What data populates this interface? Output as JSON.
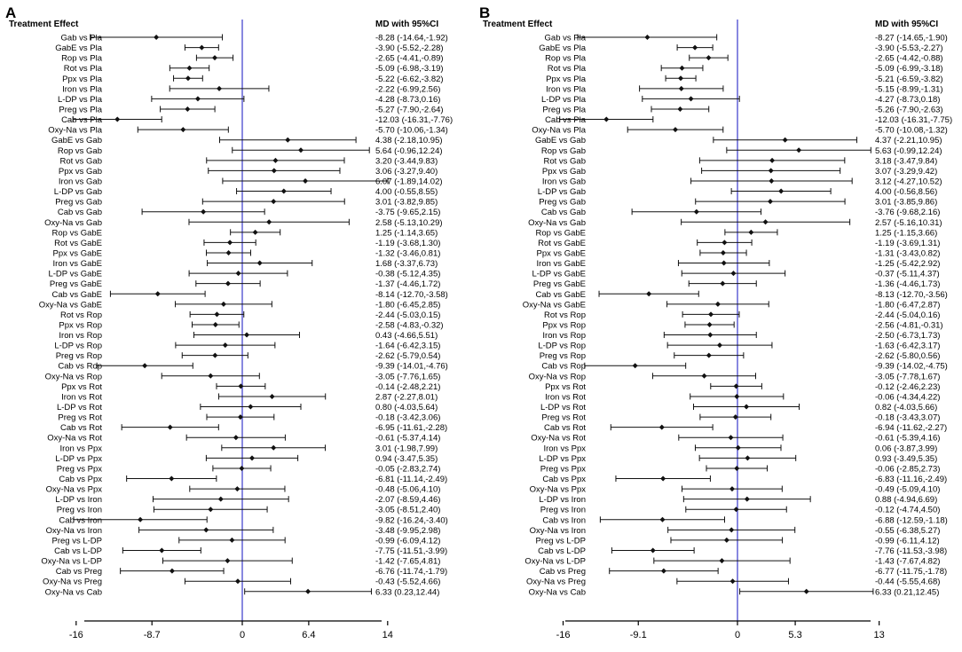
{
  "chart_data": [
    {
      "type": "forest",
      "panel_label": "A",
      "column_headers": {
        "left": "Treatment Effect",
        "right": "MD with 95%CI"
      },
      "x_ticks": [
        "-16",
        "-8.7",
        "0",
        "6.4",
        "14"
      ],
      "x_tick_values": [
        -16,
        -8.7,
        0,
        6.4,
        14
      ],
      "reference_line": 0,
      "rows": [
        {
          "label": "Gab vs Pla",
          "md": -8.28,
          "lo": -14.64,
          "hi": -1.92,
          "text": "-8.28 (-14.64,-1.92)"
        },
        {
          "label": "GabE vs Pla",
          "md": -3.9,
          "lo": -5.52,
          "hi": -2.28,
          "text": "-3.90 (-5.52,-2.28)"
        },
        {
          "label": "Rop vs Pla",
          "md": -2.65,
          "lo": -4.41,
          "hi": -0.89,
          "text": "-2.65 (-4.41,-0.89)"
        },
        {
          "label": "Rot vs Pla",
          "md": -5.09,
          "lo": -6.98,
          "hi": -3.19,
          "text": "-5.09 (-6.98,-3.19)"
        },
        {
          "label": "Ppx vs Pla",
          "md": -5.22,
          "lo": -6.62,
          "hi": -3.82,
          "text": "-5.22 (-6.62,-3.82)"
        },
        {
          "label": "Iron vs Pla",
          "md": -2.22,
          "lo": -6.99,
          "hi": 2.56,
          "text": "-2.22 (-6.99,2.56)"
        },
        {
          "label": "L-DP vs Pla",
          "md": -4.28,
          "lo": -8.73,
          "hi": 0.16,
          "text": "-4.28 (-8.73,0.16)"
        },
        {
          "label": "Preg vs Pla",
          "md": -5.27,
          "lo": -7.9,
          "hi": -2.64,
          "text": "-5.27 (-7.90,-2.64)"
        },
        {
          "label": "Cab vs Pla",
          "md": -12.03,
          "lo": -16.31,
          "hi": -7.76,
          "text": "-12.03 (-16.31,-7.76)"
        },
        {
          "label": "Oxy-Na vs Pla",
          "md": -5.7,
          "lo": -10.06,
          "hi": -1.34,
          "text": "-5.70 (-10.06,-1.34)"
        },
        {
          "label": "GabE vs Gab",
          "md": 4.38,
          "lo": -2.18,
          "hi": 10.95,
          "text": "4.38 (-2.18,10.95)"
        },
        {
          "label": "Rop vs Gab",
          "md": 5.64,
          "lo": -0.96,
          "hi": 12.24,
          "text": "5.64 (-0.96,12.24)"
        },
        {
          "label": "Rot vs Gab",
          "md": 3.2,
          "lo": -3.44,
          "hi": 9.83,
          "text": "3.20 (-3.44,9.83)"
        },
        {
          "label": "Ppx vs Gab",
          "md": 3.06,
          "lo": -3.27,
          "hi": 9.4,
          "text": "3.06 (-3.27,9.40)"
        },
        {
          "label": "Iron vs Gab",
          "md": 6.07,
          "lo": -1.89,
          "hi": 14.02,
          "text": "6.07 (-1.89,14.02)"
        },
        {
          "label": "L-DP vs Gab",
          "md": 4.0,
          "lo": -0.55,
          "hi": 8.55,
          "text": "4.00 (-0.55,8.55)"
        },
        {
          "label": "Preg vs Gab",
          "md": 3.01,
          "lo": -3.82,
          "hi": 9.85,
          "text": "3.01 (-3.82,9.85)"
        },
        {
          "label": "Cab vs Gab",
          "md": -3.75,
          "lo": -9.65,
          "hi": 2.15,
          "text": "-3.75 (-9.65,2.15)"
        },
        {
          "label": "Oxy-Na vs Gab",
          "md": 2.58,
          "lo": -5.13,
          "hi": 10.29,
          "text": "2.58 (-5.13,10.29)"
        },
        {
          "label": "Rop vs GabE",
          "md": 1.25,
          "lo": -1.14,
          "hi": 3.65,
          "text": "1.25 (-1.14,3.65)"
        },
        {
          "label": "Rot vs GabE",
          "md": -1.19,
          "lo": -3.68,
          "hi": 1.3,
          "text": "-1.19 (-3.68,1.30)"
        },
        {
          "label": "Ppx vs GabE",
          "md": -1.32,
          "lo": -3.46,
          "hi": 0.81,
          "text": "-1.32 (-3.46,0.81)"
        },
        {
          "label": "Iron vs GabE",
          "md": 1.68,
          "lo": -3.37,
          "hi": 6.73,
          "text": "1.68 (-3.37,6.73)"
        },
        {
          "label": "L-DP vs GabE",
          "md": -0.38,
          "lo": -5.12,
          "hi": 4.35,
          "text": "-0.38 (-5.12,4.35)"
        },
        {
          "label": "Preg vs GabE",
          "md": -1.37,
          "lo": -4.46,
          "hi": 1.72,
          "text": "-1.37 (-4.46,1.72)"
        },
        {
          "label": "Cab vs GabE",
          "md": -8.14,
          "lo": -12.7,
          "hi": -3.58,
          "text": "-8.14 (-12.70,-3.58)"
        },
        {
          "label": "Oxy-Na vs GabE",
          "md": -1.8,
          "lo": -6.45,
          "hi": 2.85,
          "text": "-1.80 (-6.45,2.85)"
        },
        {
          "label": "Rot vs Rop",
          "md": -2.44,
          "lo": -5.03,
          "hi": 0.15,
          "text": "-2.44 (-5.03,0.15)"
        },
        {
          "label": "Ppx vs Rop",
          "md": -2.58,
          "lo": -4.83,
          "hi": -0.32,
          "text": "-2.58 (-4.83,-0.32)"
        },
        {
          "label": "Iron vs Rop",
          "md": 0.43,
          "lo": -4.66,
          "hi": 5.51,
          "text": "0.43 (-4.66,5.51)"
        },
        {
          "label": "L-DP vs Rop",
          "md": -1.64,
          "lo": -6.42,
          "hi": 3.15,
          "text": "-1.64 (-6.42,3.15)"
        },
        {
          "label": "Preg vs Rop",
          "md": -2.62,
          "lo": -5.79,
          "hi": 0.54,
          "text": "-2.62 (-5.79,0.54)"
        },
        {
          "label": "Cab vs Rop",
          "md": -9.39,
          "lo": -14.01,
          "hi": -4.76,
          "text": "-9.39 (-14.01,-4.76)"
        },
        {
          "label": "Oxy-Na vs Rop",
          "md": -3.05,
          "lo": -7.76,
          "hi": 1.65,
          "text": "-3.05 (-7.76,1.65)"
        },
        {
          "label": "Ppx vs Rot",
          "md": -0.14,
          "lo": -2.48,
          "hi": 2.21,
          "text": "-0.14 (-2.48,2.21)"
        },
        {
          "label": "Iron vs Rot",
          "md": 2.87,
          "lo": -2.27,
          "hi": 8.01,
          "text": "2.87 (-2.27,8.01)"
        },
        {
          "label": "L-DP vs Rot",
          "md": 0.8,
          "lo": -4.03,
          "hi": 5.64,
          "text": "0.80 (-4.03,5.64)"
        },
        {
          "label": "Preg vs Rot",
          "md": -0.18,
          "lo": -3.42,
          "hi": 3.06,
          "text": "-0.18 (-3.42,3.06)"
        },
        {
          "label": "Cab vs Rot",
          "md": -6.95,
          "lo": -11.61,
          "hi": -2.28,
          "text": "-6.95 (-11.61,-2.28)"
        },
        {
          "label": "Oxy-Na vs Rot",
          "md": -0.61,
          "lo": -5.37,
          "hi": 4.14,
          "text": "-0.61 (-5.37,4.14)"
        },
        {
          "label": "Iron vs Ppx",
          "md": 3.01,
          "lo": -1.98,
          "hi": 7.99,
          "text": "3.01 (-1.98,7.99)"
        },
        {
          "label": "L-DP vs Ppx",
          "md": 0.94,
          "lo": -3.47,
          "hi": 5.35,
          "text": "0.94 (-3.47,5.35)"
        },
        {
          "label": "Preg vs Ppx",
          "md": -0.05,
          "lo": -2.83,
          "hi": 2.74,
          "text": "-0.05 (-2.83,2.74)"
        },
        {
          "label": "Cab vs Ppx",
          "md": -6.81,
          "lo": -11.14,
          "hi": -2.49,
          "text": "-6.81 (-11.14,-2.49)"
        },
        {
          "label": "Oxy-Na vs Ppx",
          "md": -0.48,
          "lo": -5.06,
          "hi": 4.1,
          "text": "-0.48 (-5.06,4.10)"
        },
        {
          "label": "L-DP vs Iron",
          "md": -2.07,
          "lo": -8.59,
          "hi": 4.46,
          "text": "-2.07 (-8.59,4.46)"
        },
        {
          "label": "Preg vs Iron",
          "md": -3.05,
          "lo": -8.51,
          "hi": 2.4,
          "text": "-3.05 (-8.51,2.40)"
        },
        {
          "label": "Cab vs Iron",
          "md": -9.82,
          "lo": -16.24,
          "hi": -3.4,
          "text": "-9.82 (-16.24,-3.40)"
        },
        {
          "label": "Oxy-Na vs Iron",
          "md": -3.48,
          "lo": -9.95,
          "hi": 2.98,
          "text": "-3.48 (-9.95,2.98)"
        },
        {
          "label": "Preg vs L-DP",
          "md": -0.99,
          "lo": -6.09,
          "hi": 4.12,
          "text": "-0.99 (-6.09,4.12)"
        },
        {
          "label": "Cab vs L-DP",
          "md": -7.75,
          "lo": -11.51,
          "hi": -3.99,
          "text": "-7.75 (-11.51,-3.99)"
        },
        {
          "label": "Oxy-Na vs L-DP",
          "md": -1.42,
          "lo": -7.65,
          "hi": 4.81,
          "text": "-1.42 (-7.65,4.81)"
        },
        {
          "label": "Cab vs Preg",
          "md": -6.76,
          "lo": -11.74,
          "hi": -1.79,
          "text": "-6.76 (-11.74,-1.79)"
        },
        {
          "label": "Oxy-Na vs Preg",
          "md": -0.43,
          "lo": -5.52,
          "hi": 4.66,
          "text": "-0.43 (-5.52,4.66)"
        },
        {
          "label": "Oxy-Na vs Cab",
          "md": 6.33,
          "lo": 0.23,
          "hi": 12.44,
          "text": "6.33 (0.23,12.44)"
        }
      ]
    },
    {
      "type": "forest",
      "panel_label": "B",
      "column_headers": {
        "left": "Treatment Effect",
        "right": "MD with 95%CI"
      },
      "x_ticks": [
        "-16",
        "-9.1",
        "0",
        "5.3",
        "13"
      ],
      "x_tick_values": [
        -16,
        -9.1,
        0,
        5.3,
        13
      ],
      "reference_line": 0,
      "rows": [
        {
          "label": "Gab vs Pla",
          "md": -8.27,
          "lo": -14.65,
          "hi": -1.9,
          "text": "-8.27 (-14.65,-1.90)"
        },
        {
          "label": "GabE vs Pla",
          "md": -3.9,
          "lo": -5.53,
          "hi": -2.27,
          "text": "-3.90 (-5.53,-2.27)"
        },
        {
          "label": "Rop vs Pla",
          "md": -2.65,
          "lo": -4.42,
          "hi": -0.88,
          "text": "-2.65 (-4.42,-0.88)"
        },
        {
          "label": "Rot vs Pla",
          "md": -5.09,
          "lo": -6.99,
          "hi": -3.18,
          "text": "-5.09 (-6.99,-3.18)"
        },
        {
          "label": "Ppx vs Pla",
          "md": -5.21,
          "lo": -6.59,
          "hi": -3.82,
          "text": "-5.21 (-6.59,-3.82)"
        },
        {
          "label": "Iron vs Pla",
          "md": -5.15,
          "lo": -8.99,
          "hi": -1.31,
          "text": "-5.15 (-8.99,-1.31)"
        },
        {
          "label": "L-DP vs Pla",
          "md": -4.27,
          "lo": -8.73,
          "hi": 0.18,
          "text": "-4.27 (-8.73,0.18)"
        },
        {
          "label": "Preg vs Pla",
          "md": -5.26,
          "lo": -7.9,
          "hi": -2.63,
          "text": "-5.26 (-7.90,-2.63)"
        },
        {
          "label": "Cab vs Pla",
          "md": -12.03,
          "lo": -16.31,
          "hi": -7.75,
          "text": "-12.03 (-16.31,-7.75)"
        },
        {
          "label": "Oxy-Na vs Pla",
          "md": -5.7,
          "lo": -10.08,
          "hi": -1.32,
          "text": "-5.70 (-10.08,-1.32)"
        },
        {
          "label": "GabE vs Gab",
          "md": 4.37,
          "lo": -2.21,
          "hi": 10.95,
          "text": "4.37 (-2.21,10.95)"
        },
        {
          "label": "Rop vs Gab",
          "md": 5.63,
          "lo": -0.99,
          "hi": 12.24,
          "text": "5.63 (-0.99,12.24)"
        },
        {
          "label": "Rot vs Gab",
          "md": 3.18,
          "lo": -3.47,
          "hi": 9.84,
          "text": "3.18 (-3.47,9.84)"
        },
        {
          "label": "Ppx vs Gab",
          "md": 3.07,
          "lo": -3.29,
          "hi": 9.42,
          "text": "3.07 (-3.29,9.42)"
        },
        {
          "label": "Iron vs Gab",
          "md": 3.12,
          "lo": -4.27,
          "hi": 10.52,
          "text": "3.12 (-4.27,10.52)"
        },
        {
          "label": "L-DP vs Gab",
          "md": 4.0,
          "lo": -0.56,
          "hi": 8.56,
          "text": "4.00 (-0.56,8.56)"
        },
        {
          "label": "Preg vs Gab",
          "md": 3.01,
          "lo": -3.85,
          "hi": 9.86,
          "text": "3.01 (-3.85,9.86)"
        },
        {
          "label": "Cab vs Gab",
          "md": -3.76,
          "lo": -9.68,
          "hi": 2.16,
          "text": "-3.76 (-9.68,2.16)"
        },
        {
          "label": "Oxy-Na vs Gab",
          "md": 2.57,
          "lo": -5.16,
          "hi": 10.31,
          "text": "2.57 (-5.16,10.31)"
        },
        {
          "label": "Rop vs GabE",
          "md": 1.25,
          "lo": -1.15,
          "hi": 3.66,
          "text": "1.25 (-1.15,3.66)"
        },
        {
          "label": "Rot vs GabE",
          "md": -1.19,
          "lo": -3.69,
          "hi": 1.31,
          "text": "-1.19 (-3.69,1.31)"
        },
        {
          "label": "Ppx vs GabE",
          "md": -1.31,
          "lo": -3.43,
          "hi": 0.82,
          "text": "-1.31 (-3.43,0.82)"
        },
        {
          "label": "Iron vs GabE",
          "md": -1.25,
          "lo": -5.42,
          "hi": 2.92,
          "text": "-1.25 (-5.42,2.92)"
        },
        {
          "label": "L-DP vs GabE",
          "md": -0.37,
          "lo": -5.11,
          "hi": 4.37,
          "text": "-0.37 (-5.11,4.37)"
        },
        {
          "label": "Preg vs GabE",
          "md": -1.36,
          "lo": -4.46,
          "hi": 1.73,
          "text": "-1.36 (-4.46,1.73)"
        },
        {
          "label": "Cab vs GabE",
          "md": -8.13,
          "lo": -12.7,
          "hi": -3.56,
          "text": "-8.13 (-12.70,-3.56)"
        },
        {
          "label": "Oxy-Na vs GabE",
          "md": -1.8,
          "lo": -6.47,
          "hi": 2.87,
          "text": "-1.80 (-6.47,2.87)"
        },
        {
          "label": "Rot vs Rop",
          "md": -2.44,
          "lo": -5.04,
          "hi": 0.16,
          "text": "-2.44 (-5.04,0.16)"
        },
        {
          "label": "Ppx vs Rop",
          "md": -2.56,
          "lo": -4.81,
          "hi": -0.31,
          "text": "-2.56 (-4.81,-0.31)"
        },
        {
          "label": "Iron vs Rop",
          "md": -2.5,
          "lo": -6.73,
          "hi": 1.73,
          "text": "-2.50 (-6.73,1.73)"
        },
        {
          "label": "L-DP vs Rop",
          "md": -1.63,
          "lo": -6.42,
          "hi": 3.17,
          "text": "-1.63 (-6.42,3.17)"
        },
        {
          "label": "Preg vs Rop",
          "md": -2.62,
          "lo": -5.8,
          "hi": 0.56,
          "text": "-2.62 (-5.80,0.56)"
        },
        {
          "label": "Cab vs Rop",
          "md": -9.39,
          "lo": -14.02,
          "hi": -4.75,
          "text": "-9.39 (-14.02,-4.75)"
        },
        {
          "label": "Oxy-Na vs Rop",
          "md": -3.05,
          "lo": -7.78,
          "hi": 1.67,
          "text": "-3.05 (-7.78,1.67)"
        },
        {
          "label": "Ppx vs Rot",
          "md": -0.12,
          "lo": -2.46,
          "hi": 2.23,
          "text": "-0.12 (-2.46,2.23)"
        },
        {
          "label": "Iron vs Rot",
          "md": -0.06,
          "lo": -4.34,
          "hi": 4.22,
          "text": "-0.06 (-4.34,4.22)"
        },
        {
          "label": "L-DP vs Rot",
          "md": 0.82,
          "lo": -4.03,
          "hi": 5.66,
          "text": "0.82 (-4.03,5.66)"
        },
        {
          "label": "Preg vs Rot",
          "md": -0.18,
          "lo": -3.43,
          "hi": 3.07,
          "text": "-0.18 (-3.43,3.07)"
        },
        {
          "label": "Cab vs Rot",
          "md": -6.94,
          "lo": -11.62,
          "hi": -2.27,
          "text": "-6.94 (-11.62,-2.27)"
        },
        {
          "label": "Oxy-Na vs Rot",
          "md": -0.61,
          "lo": -5.39,
          "hi": 4.16,
          "text": "-0.61 (-5.39,4.16)"
        },
        {
          "label": "Iron vs Ppx",
          "md": 0.06,
          "lo": -3.87,
          "hi": 3.99,
          "text": "0.06 (-3.87,3.99)"
        },
        {
          "label": "L-DP vs Ppx",
          "md": 0.93,
          "lo": -3.49,
          "hi": 5.35,
          "text": "0.93 (-3.49,5.35)"
        },
        {
          "label": "Preg vs Ppx",
          "md": -0.06,
          "lo": -2.85,
          "hi": 2.73,
          "text": "-0.06 (-2.85,2.73)"
        },
        {
          "label": "Cab vs Ppx",
          "md": -6.83,
          "lo": -11.16,
          "hi": -2.49,
          "text": "-6.83 (-11.16,-2.49)"
        },
        {
          "label": "Oxy-Na vs Ppx",
          "md": -0.49,
          "lo": -5.09,
          "hi": 4.1,
          "text": "-0.49 (-5.09,4.10)"
        },
        {
          "label": "L-DP vs Iron",
          "md": 0.88,
          "lo": -4.94,
          "hi": 6.69,
          "text": "0.88 (-4.94,6.69)"
        },
        {
          "label": "Preg vs Iron",
          "md": -0.12,
          "lo": -4.74,
          "hi": 4.5,
          "text": "-0.12 (-4.74,4.50)"
        },
        {
          "label": "Cab vs Iron",
          "md": -6.88,
          "lo": -12.59,
          "hi": -1.18,
          "text": "-6.88 (-12.59,-1.18)"
        },
        {
          "label": "Oxy-Na vs Iron",
          "md": -0.55,
          "lo": -6.38,
          "hi": 5.27,
          "text": "-0.55 (-6.38,5.27)"
        },
        {
          "label": "Preg vs L-DP",
          "md": -0.99,
          "lo": -6.11,
          "hi": 4.12,
          "text": "-0.99 (-6.11,4.12)"
        },
        {
          "label": "Cab vs L-DP",
          "md": -7.76,
          "lo": -11.53,
          "hi": -3.98,
          "text": "-7.76 (-11.53,-3.98)"
        },
        {
          "label": "Oxy-Na vs L-DP",
          "md": -1.43,
          "lo": -7.67,
          "hi": 4.82,
          "text": "-1.43 (-7.67,4.82)"
        },
        {
          "label": "Cab vs Preg",
          "md": -6.77,
          "lo": -11.75,
          "hi": -1.78,
          "text": "-6.77 (-11.75,-1.78)"
        },
        {
          "label": "Oxy-Na vs Preg",
          "md": -0.44,
          "lo": -5.55,
          "hi": 4.68,
          "text": "-0.44 (-5.55,4.68)"
        },
        {
          "label": "Oxy-Na vs Cab",
          "md": 6.33,
          "lo": 0.21,
          "hi": 12.45,
          "text": "6.33 (0.21,12.45)"
        }
      ]
    }
  ],
  "colors": {
    "reference_line": "#3a3acc",
    "marks": "#111111",
    "text": "#000000"
  }
}
